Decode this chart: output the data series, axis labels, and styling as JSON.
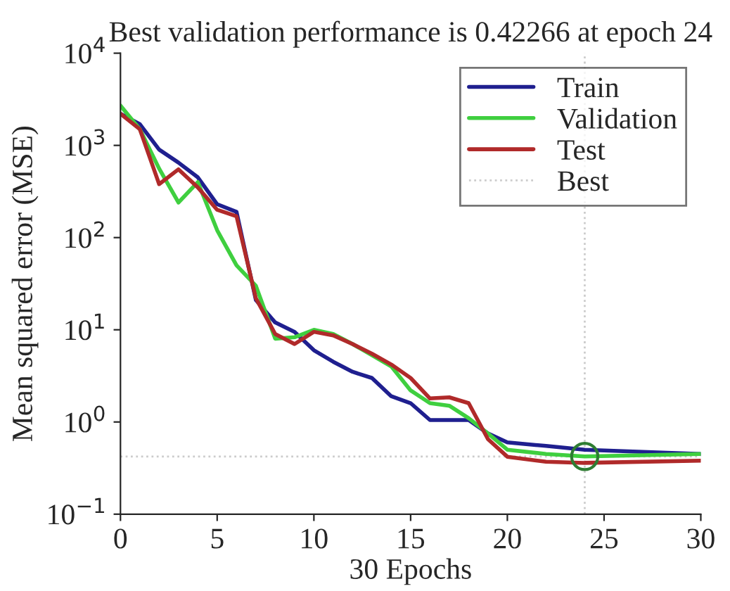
{
  "chart_data": {
    "type": "line",
    "title": "Best validation performance is 0.42266 at epoch 24",
    "xlabel": "30 Epochs",
    "ylabel": "Mean squared error (MSE)",
    "x": [
      0,
      1,
      2,
      3,
      4,
      5,
      6,
      7,
      8,
      9,
      10,
      11,
      12,
      13,
      14,
      15,
      16,
      17,
      18,
      19,
      20,
      22,
      24,
      30
    ],
    "series": [
      {
        "name": "Train",
        "color": "#1f1f8f",
        "values": [
          2200,
          1700,
          900,
          650,
          450,
          230,
          190,
          21,
          12,
          9.5,
          6,
          4.5,
          3.5,
          3,
          1.9,
          1.6,
          1.05,
          1.05,
          1.05,
          0.75,
          0.6,
          0.55,
          0.5,
          0.45
        ]
      },
      {
        "name": "Validation",
        "color": "#3fcf3f",
        "values": [
          2700,
          1500,
          560,
          240,
          400,
          120,
          50,
          30,
          8,
          8.3,
          10,
          9,
          7,
          5.3,
          4,
          2.2,
          1.6,
          1.5,
          1.1,
          0.75,
          0.5,
          0.45,
          0.42266,
          0.45
        ]
      },
      {
        "name": "Test",
        "color": "#b02a2a",
        "values": [
          2200,
          1500,
          380,
          550,
          350,
          200,
          170,
          22,
          9,
          7,
          9.5,
          8.7,
          7,
          5.5,
          4.2,
          3,
          1.8,
          1.85,
          1.6,
          0.65,
          0.42,
          0.37,
          0.36,
          0.38
        ]
      },
      {
        "type": "scatter",
        "color": "#2e7d32",
        "marker": "circle",
        "x": [
          24
        ],
        "values": [
          0.42266
        ]
      }
    ],
    "ref_lines": [
      {
        "axis": "x",
        "value": 24,
        "label": "Best",
        "color": "#cccccc",
        "line_style": "dotted"
      },
      {
        "axis": "y",
        "value": 0.42266,
        "color": "#cccccc",
        "line_style": "dotted"
      }
    ],
    "log": "y",
    "xlim": [
      0,
      30
    ],
    "xticks": [
      0,
      5,
      10,
      15,
      20,
      25,
      30
    ],
    "ylim": [
      0.1,
      10000
    ],
    "yticks": [
      {
        "value": 0.1,
        "label": "10$^{−1}$"
      },
      {
        "value": 1,
        "label": "10$^{0}$"
      },
      {
        "value": 10,
        "label": "10$^{1}$"
      },
      {
        "value": 100,
        "label": "10$^{2}$"
      },
      {
        "value": 1000,
        "label": "10$^{3}$"
      },
      {
        "value": 10000,
        "label": "10$^{4}$"
      }
    ],
    "grid": false,
    "legend": "top right"
  }
}
